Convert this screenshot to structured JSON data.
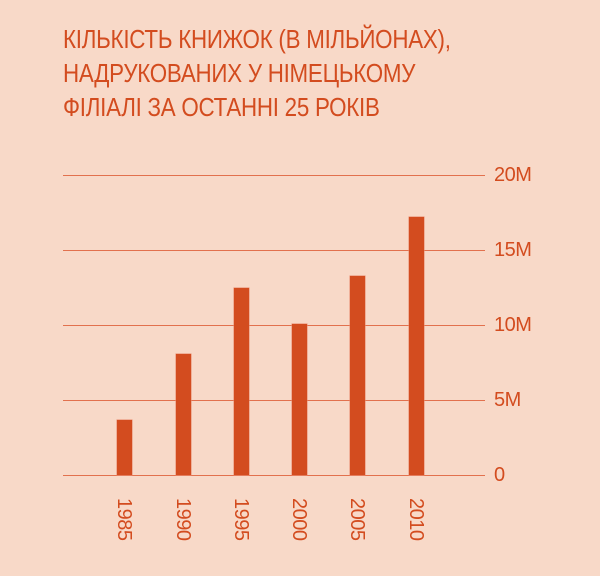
{
  "chart_data": {
    "type": "bar",
    "title": "КІЛЬКІСТЬ КНИЖОК (В МІЛЬЙОНАХ), НАДРУКОВАНИХ У НІМЕЦЬКОМУ ФІЛІАЛІ ЗА ОСТАННІ 25 РОКІВ",
    "title_lines": [
      "КІЛЬКІСТЬ КНИЖОК (В МІЛЬЙОНАХ),",
      "НАДРУКОВАНИХ У НІМЕЦЬКОМУ",
      "ФІЛІАЛІ ЗА ОСТАННІ 25 РОКІВ"
    ],
    "categories": [
      "1985",
      "1990",
      "1995",
      "2000",
      "2005",
      "2010"
    ],
    "values": [
      3.7,
      8.1,
      12.5,
      10.1,
      13.3,
      17.2
    ],
    "unit": "M",
    "xlabel": "",
    "ylabel": "",
    "ylim": [
      0,
      20
    ],
    "yticks": [
      0,
      5,
      10,
      15,
      20
    ],
    "ytick_labels": [
      "0",
      "5M",
      "10M",
      "15M",
      "20M"
    ],
    "y_axis_position": "right",
    "x_tick_rotation": 90,
    "grid": true,
    "legend": null,
    "colors": {
      "background": "#F8D9C8",
      "bar": "#D34C1F",
      "grid": "#E2714E",
      "text": "#D34C1F"
    }
  }
}
